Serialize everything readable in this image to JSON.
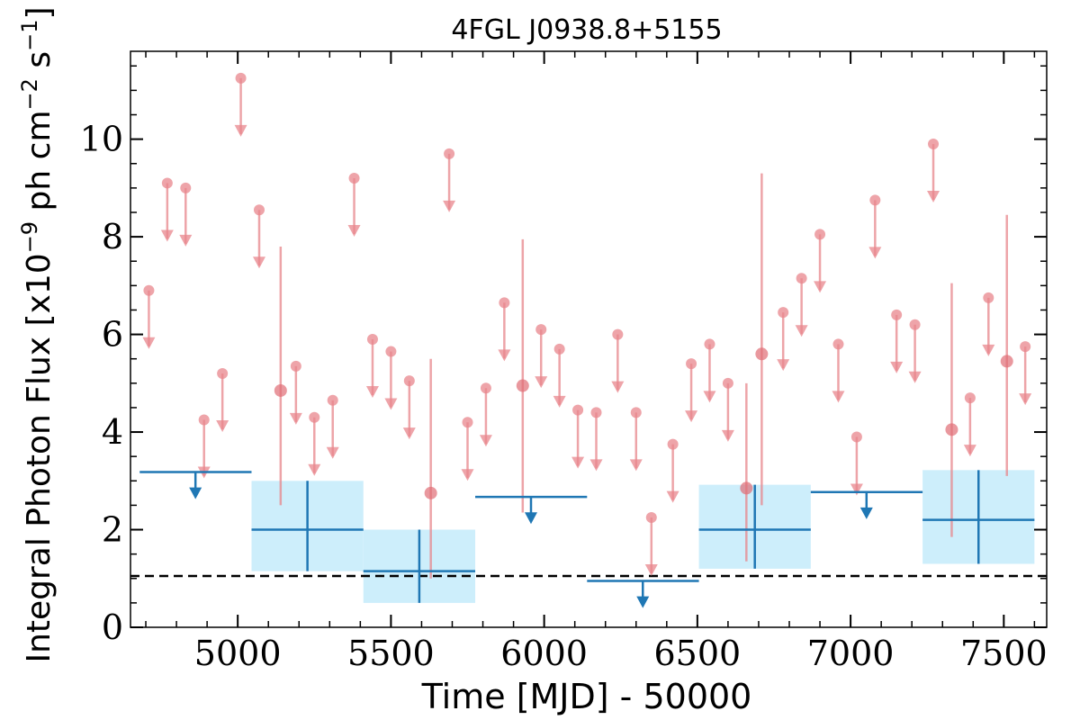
{
  "chart_data": {
    "type": "scatter",
    "title": "4FGL J0938.8+5155",
    "xlabel": "Time [MJD] - 50000",
    "ylabel_parts": {
      "prefix": "Integral Photon Flux [x10",
      "exp1": "−9",
      "mid": " ph cm",
      "exp2": "−2",
      "s": " s",
      "exp3": "−1",
      "suffix": "]"
    },
    "xlim": [
      4650,
      7640
    ],
    "ylim": [
      0,
      11.8
    ],
    "xticks": [
      5000,
      5500,
      6000,
      6500,
      7000,
      7500
    ],
    "yticks": [
      0,
      2,
      4,
      6,
      8,
      10
    ],
    "x_minor_step": 100,
    "y_minor_step": 0.5,
    "grid": false,
    "reference_line": {
      "y": 1.05,
      "style": "dashed",
      "color": "#000000"
    },
    "colors": {
      "monthly": "#e8868c",
      "yearly": "#1f77b4",
      "yearly_band": "#cdeefb"
    },
    "series": [
      {
        "kind": "monthly_upper_limits",
        "points": [
          {
            "x": 4710,
            "y": 6.9
          },
          {
            "x": 4770,
            "y": 9.1
          },
          {
            "x": 4830,
            "y": 9.0
          },
          {
            "x": 4890,
            "y": 4.25
          },
          {
            "x": 4950,
            "y": 5.2
          },
          {
            "x": 5010,
            "y": 11.25
          },
          {
            "x": 5070,
            "y": 8.55
          },
          {
            "x": 5190,
            "y": 5.35
          },
          {
            "x": 5250,
            "y": 4.3
          },
          {
            "x": 5310,
            "y": 4.65
          },
          {
            "x": 5380,
            "y": 9.2
          },
          {
            "x": 5440,
            "y": 5.9
          },
          {
            "x": 5500,
            "y": 5.65
          },
          {
            "x": 5560,
            "y": 5.05
          },
          {
            "x": 5690,
            "y": 9.7
          },
          {
            "x": 5750,
            "y": 4.2
          },
          {
            "x": 5810,
            "y": 4.9
          },
          {
            "x": 5870,
            "y": 6.65
          },
          {
            "x": 5990,
            "y": 6.1
          },
          {
            "x": 6050,
            "y": 5.7
          },
          {
            "x": 6110,
            "y": 4.45
          },
          {
            "x": 6170,
            "y": 4.4
          },
          {
            "x": 6240,
            "y": 6.0
          },
          {
            "x": 6300,
            "y": 4.4
          },
          {
            "x": 6350,
            "y": 2.25
          },
          {
            "x": 6420,
            "y": 3.75
          },
          {
            "x": 6480,
            "y": 5.4
          },
          {
            "x": 6540,
            "y": 5.8
          },
          {
            "x": 6600,
            "y": 5.0
          },
          {
            "x": 6780,
            "y": 6.45
          },
          {
            "x": 6840,
            "y": 7.15
          },
          {
            "x": 6900,
            "y": 8.05
          },
          {
            "x": 6960,
            "y": 5.8
          },
          {
            "x": 7020,
            "y": 3.9
          },
          {
            "x": 7080,
            "y": 8.75
          },
          {
            "x": 7150,
            "y": 6.4
          },
          {
            "x": 7210,
            "y": 6.2
          },
          {
            "x": 7270,
            "y": 9.9
          },
          {
            "x": 7390,
            "y": 4.7
          },
          {
            "x": 7450,
            "y": 6.75
          },
          {
            "x": 7570,
            "y": 5.75
          }
        ]
      },
      {
        "kind": "monthly_detections",
        "points": [
          {
            "x": 5140,
            "y": 4.85,
            "ylo": 2.5,
            "yhi": 7.8
          },
          {
            "x": 5630,
            "y": 2.75,
            "ylo": 1.0,
            "yhi": 5.5
          },
          {
            "x": 5930,
            "y": 4.95,
            "ylo": 2.35,
            "yhi": 7.95
          },
          {
            "x": 6660,
            "y": 2.85,
            "ylo": 1.35,
            "yhi": 5.0
          },
          {
            "x": 6710,
            "y": 5.6,
            "ylo": 2.5,
            "yhi": 9.3
          },
          {
            "x": 7330,
            "y": 4.05,
            "ylo": 1.85,
            "yhi": 7.05
          },
          {
            "x": 7510,
            "y": 5.45,
            "ylo": 3.1,
            "yhi": 8.45
          }
        ]
      },
      {
        "kind": "yearly_upper_limits",
        "bins": [
          {
            "x0": 4680,
            "x1": 5045,
            "y": 3.18,
            "xc": 4862
          },
          {
            "x0": 5775,
            "x1": 6140,
            "y": 2.67,
            "xc": 5957
          },
          {
            "x0": 6140,
            "x1": 6505,
            "y": 0.95,
            "xc": 6322
          },
          {
            "x0": 6870,
            "x1": 7235,
            "y": 2.77,
            "xc": 7052
          }
        ]
      },
      {
        "kind": "yearly_detections",
        "bins": [
          {
            "x0": 5045,
            "x1": 5410,
            "y": 2.0,
            "ylo": 1.15,
            "yhi": 3.0
          },
          {
            "x0": 5410,
            "x1": 5775,
            "y": 1.15,
            "ylo": 0.5,
            "yhi": 2.0
          },
          {
            "x0": 6505,
            "x1": 6870,
            "y": 2.0,
            "ylo": 1.2,
            "yhi": 2.92
          },
          {
            "x0": 7235,
            "x1": 7600,
            "y": 2.2,
            "ylo": 1.3,
            "yhi": 3.22
          }
        ]
      }
    ]
  }
}
